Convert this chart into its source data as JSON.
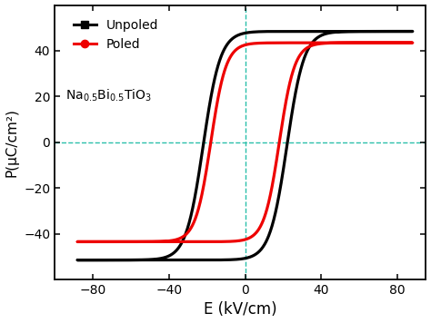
{
  "xlabel": "E (kV/cm)",
  "ylabel": "P(μC/cm²)",
  "xlim": [
    -100,
    95
  ],
  "ylim": [
    -60,
    60
  ],
  "xticks": [
    -80,
    -40,
    0,
    40,
    80
  ],
  "yticks": [
    -40,
    -20,
    0,
    20,
    40
  ],
  "grid_color": "#2abfaa",
  "grid_style": "--",
  "grid_linewidth": 1.0,
  "unpoled_color": "#000000",
  "poled_color": "#ee0000",
  "linewidth": 2.3,
  "legend_labels": [
    "Unpoled",
    "Poled"
  ],
  "formula_text": "Na$_{0.5}$Bi$_{0.5}$TiO$_3$",
  "bg_color": "#ffffff",
  "spine_color": "#000000"
}
